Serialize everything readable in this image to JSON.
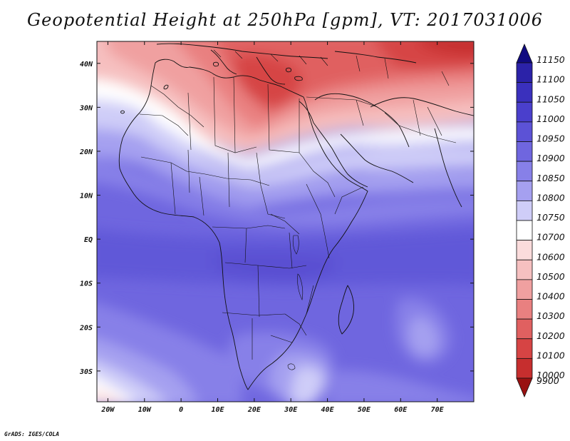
{
  "title": "Geopotential Height at 250hPa [gpm], VT: 2017031006",
  "credit": "GrADS: IGES/COLA",
  "map": {
    "lon_range": [
      -23,
      80
    ],
    "lat_range": [
      -37,
      45
    ],
    "lon_ticks": [
      {
        "value": -20,
        "label": "20W"
      },
      {
        "value": -10,
        "label": "10W"
      },
      {
        "value": 0,
        "label": "0"
      },
      {
        "value": 10,
        "label": "10E"
      },
      {
        "value": 20,
        "label": "20E"
      },
      {
        "value": 30,
        "label": "30E"
      },
      {
        "value": 40,
        "label": "40E"
      },
      {
        "value": 50,
        "label": "50E"
      },
      {
        "value": 60,
        "label": "60E"
      },
      {
        "value": 70,
        "label": "70E"
      }
    ],
    "lat_ticks": [
      {
        "value": 40,
        "label": "40N"
      },
      {
        "value": 30,
        "label": "30N"
      },
      {
        "value": 20,
        "label": "20N"
      },
      {
        "value": 10,
        "label": "10N"
      },
      {
        "value": 0,
        "label": "EQ"
      },
      {
        "value": -10,
        "label": "10S"
      },
      {
        "value": -20,
        "label": "20S"
      },
      {
        "value": -30,
        "label": "30S"
      }
    ]
  },
  "colorbar": {
    "levels": [
      {
        "label": "11150",
        "color": "#18128f"
      },
      {
        "label": "11100",
        "color": "#2b22a8"
      },
      {
        "label": "11050",
        "color": "#3a30bd"
      },
      {
        "label": "11000",
        "color": "#4a3fcc"
      },
      {
        "label": "10950",
        "color": "#5c52d6"
      },
      {
        "label": "10900",
        "color": "#6f66df"
      },
      {
        "label": "10850",
        "color": "#8780e8"
      },
      {
        "label": "10800",
        "color": "#a5a0f0"
      },
      {
        "label": "10750",
        "color": "#cfcdf8"
      },
      {
        "label": "10700",
        "color": "#ffffff"
      },
      {
        "label": "10600",
        "color": "#fbdcdc"
      },
      {
        "label": "10500",
        "color": "#f6c0c0"
      },
      {
        "label": "10400",
        "color": "#f0a0a0"
      },
      {
        "label": "10300",
        "color": "#e98080"
      },
      {
        "label": "10200",
        "color": "#e06060"
      },
      {
        "label": "10100",
        "color": "#d64444"
      },
      {
        "label": "10000",
        "color": "#c62e2e"
      },
      {
        "label": "9900",
        "color": "#aa1a1a"
      }
    ],
    "top_arrow_color": "#100a80",
    "bottom_arrow_color": "#991111"
  }
}
